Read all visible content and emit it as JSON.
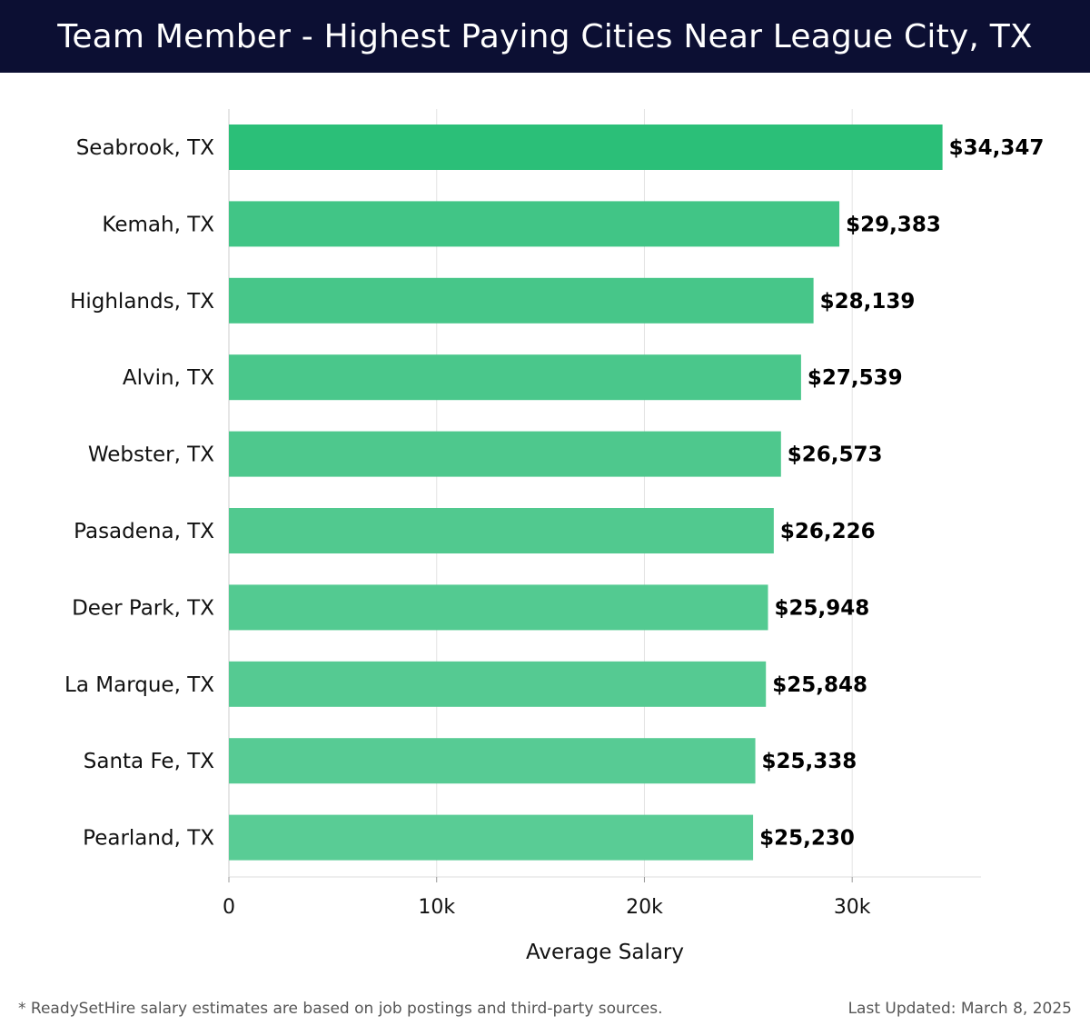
{
  "chart_data": {
    "type": "bar",
    "orientation": "horizontal",
    "title": "Team Member - Highest Paying Cities Near League City, TX",
    "categories": [
      "Seabrook, TX",
      "Kemah, TX",
      "Highlands, TX",
      "Alvin, TX",
      "Webster, TX",
      "Pasadena, TX",
      "Deer Park, TX",
      "La Marque, TX",
      "Santa Fe, TX",
      "Pearland, TX"
    ],
    "values": [
      34347,
      29383,
      28139,
      27539,
      26573,
      26226,
      25948,
      25848,
      25338,
      25230
    ],
    "value_labels": [
      "$34,347",
      "$29,383",
      "$28,139",
      "$27,539",
      "$26,573",
      "$26,226",
      "$25,948",
      "$25,848",
      "$25,338",
      "$25,230"
    ],
    "xlabel": "Average Salary",
    "ylabel": "",
    "xlim": [
      0,
      36200
    ],
    "xticks": [
      0,
      10000,
      20000,
      30000
    ],
    "xtick_labels": [
      "0",
      "10k",
      "20k",
      "30k"
    ],
    "grid": true,
    "bar_colors": [
      "#2bbf78",
      "#41c586",
      "#47c689",
      "#4ac78b",
      "#4ec88d",
      "#51c98f",
      "#53ca91",
      "#55ca92",
      "#57cb94",
      "#59cc95"
    ]
  },
  "footer": {
    "note": "* ReadySetHire salary estimates are based on job postings and third-party sources.",
    "updated": "Last Updated: March 8, 2025"
  }
}
